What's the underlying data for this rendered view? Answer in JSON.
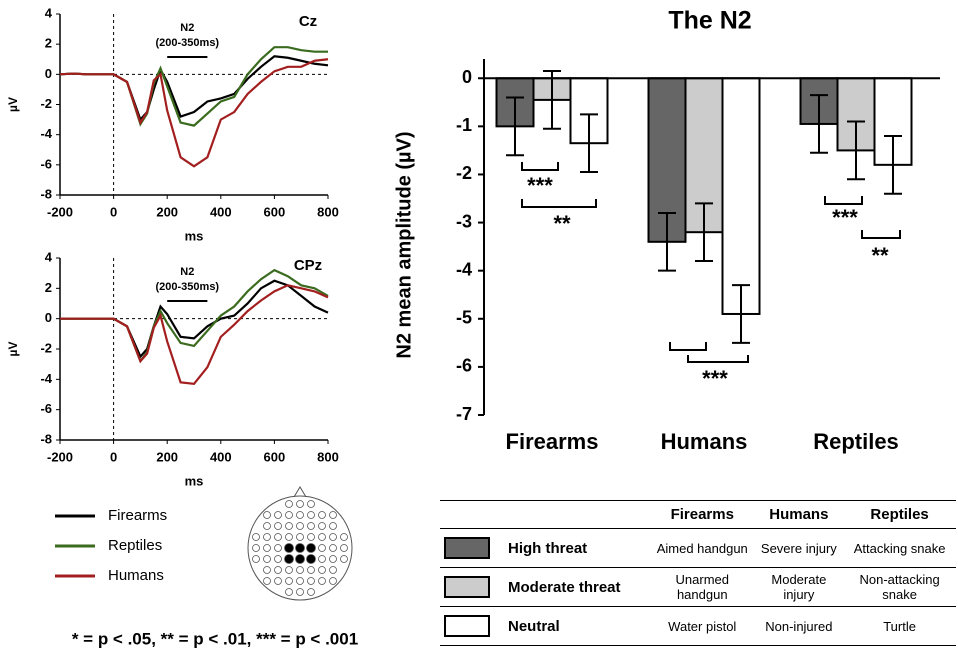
{
  "chart_data": [
    {
      "type": "line",
      "channel": "Cz",
      "annotation": "N2",
      "window_label": "(200-350ms)",
      "window": [
        200,
        350
      ],
      "xlabel": "ms",
      "ylabel": "µV",
      "x": [
        -200,
        -150,
        -100,
        -50,
        0,
        50,
        100,
        125,
        150,
        175,
        200,
        250,
        300,
        350,
        400,
        450,
        500,
        550,
        600,
        650,
        700,
        750,
        800
      ],
      "xlim": [
        -200,
        800
      ],
      "xticks": [
        -200,
        0,
        200,
        400,
        600,
        800
      ],
      "ylim": [
        -8,
        4
      ],
      "yticks": [
        -8,
        -6,
        -4,
        -2,
        0,
        2,
        4
      ],
      "series": [
        {
          "name": "Firearms",
          "color": "#000000",
          "values": [
            0,
            0.05,
            0,
            0,
            0,
            -0.5,
            -3.0,
            -2.5,
            -1,
            0.3,
            -0.5,
            -2.8,
            -2.5,
            -1.8,
            -1.6,
            -1.3,
            -0.3,
            0.5,
            1.2,
            1.1,
            0.9,
            0.7,
            0.6
          ]
        },
        {
          "name": "Reptiles",
          "color": "#3a6b1e",
          "values": [
            0,
            0.05,
            0,
            0,
            0,
            -0.5,
            -3.3,
            -2.6,
            -0.6,
            0.4,
            -0.8,
            -3.2,
            -3.4,
            -2.6,
            -1.8,
            -1.5,
            0,
            1.0,
            1.8,
            1.8,
            1.6,
            1.5,
            1.5
          ]
        },
        {
          "name": "Humans",
          "color": "#a31f1f",
          "values": [
            0,
            0.05,
            0,
            0,
            0,
            -0.5,
            -3.2,
            -2.5,
            -0.4,
            0.0,
            -2.4,
            -5.5,
            -6.1,
            -5.5,
            -3.0,
            -2.5,
            -1.3,
            -0.5,
            0.2,
            0.5,
            0.5,
            0.9,
            1.0
          ]
        }
      ]
    },
    {
      "type": "line",
      "channel": "CPz",
      "annotation": "N2",
      "window_label": "(200-350ms)",
      "window": [
        200,
        350
      ],
      "xlabel": "ms",
      "ylabel": "µV",
      "x": [
        -200,
        -150,
        -100,
        -50,
        0,
        50,
        100,
        125,
        150,
        175,
        200,
        250,
        300,
        350,
        400,
        450,
        500,
        550,
        600,
        650,
        700,
        750,
        800
      ],
      "xlim": [
        -200,
        800
      ],
      "xticks": [
        -200,
        0,
        200,
        400,
        600,
        800
      ],
      "ylim": [
        -8,
        4
      ],
      "yticks": [
        -8,
        -6,
        -4,
        -2,
        0,
        2,
        4
      ],
      "series": [
        {
          "color": "#000000",
          "values": [
            0,
            0,
            0,
            0,
            0,
            -0.5,
            -2.5,
            -2.0,
            -0.5,
            0.8,
            0.3,
            -1.2,
            -1.3,
            -0.5,
            0,
            0.2,
            1.0,
            2.0,
            2.5,
            2.2,
            1.5,
            0.8,
            0.4
          ]
        },
        {
          "color": "#3a6b1e",
          "values": [
            0,
            0,
            0,
            0,
            0,
            -0.5,
            -2.8,
            -2.2,
            -0.5,
            0.5,
            -0.3,
            -1.6,
            -1.8,
            -0.8,
            0.2,
            0.8,
            1.8,
            2.6,
            3.2,
            2.8,
            2.2,
            2.0,
            1.5
          ]
        },
        {
          "color": "#a31f1f",
          "values": [
            0,
            0,
            0,
            0,
            0,
            -0.5,
            -2.8,
            -2.3,
            -0.6,
            0.2,
            -1.5,
            -4.2,
            -4.3,
            -3.2,
            -1.2,
            -0.4,
            0.5,
            1.2,
            1.8,
            2.2,
            2.0,
            1.8,
            1.4
          ]
        }
      ]
    },
    {
      "type": "bar",
      "title": "The N2",
      "ylabel": "N2 mean amplitude (µV)",
      "categories": [
        "Firearms",
        "Humans",
        "Reptiles"
      ],
      "ylim": [
        -7,
        0.4
      ],
      "yticks": [
        -7,
        -6,
        -5,
        -4,
        -3,
        -2,
        -1,
        0
      ],
      "series": [
        {
          "name": "High threat",
          "color": "#666666",
          "values": [
            -1.0,
            -3.4,
            -0.95
          ],
          "errors": [
            0.6,
            0.6,
            0.6
          ]
        },
        {
          "name": "Moderate threat",
          "color": "#cccccc",
          "values": [
            -0.45,
            -3.2,
            -1.5
          ],
          "errors": [
            0.6,
            0.6,
            0.6
          ]
        },
        {
          "name": "Neutral",
          "color": "#ffffff",
          "values": [
            -1.35,
            -4.9,
            -1.8
          ],
          "errors": [
            0.6,
            0.6,
            0.6
          ]
        }
      ],
      "annotations": [
        "***",
        "**",
        "***",
        "***",
        "**"
      ]
    }
  ],
  "table": {
    "header": [
      "Firearms",
      "Humans",
      "Reptiles"
    ],
    "rows": [
      [
        "Aimed handgun",
        "Severe injury",
        "Attacking snake"
      ],
      [
        "Unarmed handgun",
        "Moderate injury",
        "Non-attacking snake"
      ],
      [
        "Water pistol",
        "Non-injured",
        "Turtle"
      ]
    ]
  },
  "footnote": "* = p < .05, ** = p < .01, *** = p < .001"
}
